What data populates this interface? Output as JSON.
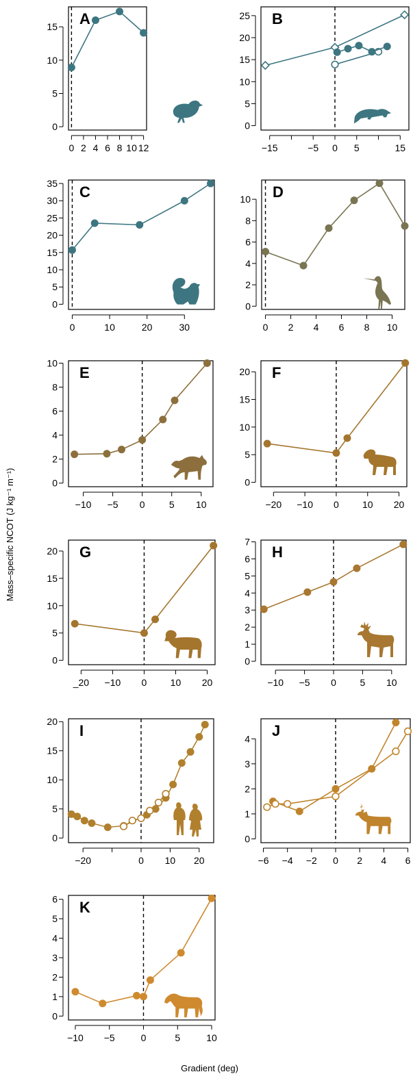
{
  "figure": {
    "ylabel": "Mass–specific NCOT (J kg⁻¹ m⁻¹)",
    "xlabel": "Gradient (deg)"
  },
  "chart_data": [
    {
      "id": "A",
      "type": "line",
      "color": "#3d7681",
      "animal": "bird",
      "xlim": [
        -0.5,
        12.5
      ],
      "ylim": [
        -0.5,
        18
      ],
      "xticks": [
        0,
        2,
        4,
        6,
        8,
        10,
        12
      ],
      "xticklabels": [
        "0",
        "2",
        "4",
        "6",
        "8",
        "10",
        "12"
      ],
      "yticks": [
        0,
        5,
        10,
        15
      ],
      "yticklabels": [
        "0",
        "5",
        "10",
        "15"
      ],
      "series": [
        {
          "marker": "filled",
          "points": [
            [
              0,
              8.9
            ],
            [
              4,
              16
            ],
            [
              8,
              17.3
            ],
            [
              12,
              14.1
            ]
          ]
        }
      ]
    },
    {
      "id": "B",
      "type": "line",
      "color": "#3d7681",
      "animal": "rat",
      "xlim": [
        -17,
        17
      ],
      "ylim": [
        -1,
        27
      ],
      "xticks": [
        -15,
        -10,
        -5,
        0,
        5,
        10,
        15
      ],
      "xticklabels": [
        "−15",
        "",
        "−5",
        "0",
        "5",
        "",
        "15"
      ],
      "yticks": [
        0,
        5,
        10,
        15,
        20,
        25
      ],
      "yticklabels": [
        "0",
        "5",
        "10",
        "15",
        "20",
        "25"
      ],
      "series": [
        {
          "marker": "diamond",
          "points": [
            [
              -16,
              13.7
            ],
            [
              0,
              17.8
            ],
            [
              16,
              25.2
            ]
          ]
        },
        {
          "marker": "open",
          "points": [
            [
              0,
              13.9
            ],
            [
              10,
              16.8
            ]
          ]
        },
        {
          "marker": "filled",
          "points": [
            [
              0.5,
              16.7
            ],
            [
              3,
              17.5
            ],
            [
              5.5,
              18.2
            ],
            [
              8.5,
              16.8
            ],
            [
              12,
              18
            ]
          ]
        }
      ]
    },
    {
      "id": "C",
      "type": "line",
      "color": "#3d7681",
      "animal": "squirrel",
      "xlim": [
        -1,
        38
      ],
      "ylim": [
        -1.5,
        36
      ],
      "xticks": [
        0,
        10,
        20,
        30
      ],
      "xticklabels": [
        "0",
        "10",
        "20",
        "30"
      ],
      "yticks": [
        0,
        5,
        10,
        15,
        20,
        25,
        30,
        35
      ],
      "yticklabels": [
        "0",
        "5",
        "10",
        "15",
        "20",
        "25",
        "30",
        "35"
      ],
      "series": [
        {
          "marker": "filled",
          "points": [
            [
              0,
              15.7
            ],
            [
              6,
              23.5
            ],
            [
              18,
              23
            ],
            [
              30,
              30
            ],
            [
              37,
              35
            ]
          ]
        }
      ]
    },
    {
      "id": "D",
      "type": "line",
      "color": "#797553",
      "animal": "heron",
      "xlim": [
        -0.3,
        11
      ],
      "ylim": [
        -0.3,
        11.8
      ],
      "xticks": [
        0,
        2,
        4,
        6,
        8,
        10
      ],
      "xticklabels": [
        "0",
        "2",
        "4",
        "6",
        "8",
        "10"
      ],
      "yticks": [
        0,
        2,
        4,
        6,
        8,
        10
      ],
      "yticklabels": [
        "0",
        "2",
        "4",
        "6",
        "8",
        "10"
      ],
      "series": [
        {
          "marker": "filled",
          "points": [
            [
              0,
              5.1
            ],
            [
              3,
              3.8
            ],
            [
              5,
              7.3
            ],
            [
              7,
              9.9
            ],
            [
              9,
              11.5
            ],
            [
              11,
              7.5
            ]
          ]
        }
      ]
    },
    {
      "id": "E",
      "type": "line",
      "color": "#8c6f3c",
      "animal": "wolf",
      "xlim": [
        -12.5,
        12
      ],
      "ylim": [
        -0.3,
        10.2
      ],
      "xticks": [
        -10,
        -5,
        0,
        5,
        10
      ],
      "xticklabels": [
        "−10",
        "−5",
        "0",
        "5",
        "10"
      ],
      "yticks": [
        0,
        2,
        4,
        6,
        8,
        10
      ],
      "yticklabels": [
        "0",
        "2",
        "4",
        "6",
        "8",
        "10"
      ],
      "series": [
        {
          "marker": "filled",
          "points": [
            [
              -11.5,
              2.4
            ],
            [
              -6,
              2.45
            ],
            [
              -3.5,
              2.8
            ],
            [
              0,
              3.6
            ],
            [
              3.5,
              5.3
            ],
            [
              5.5,
              6.9
            ],
            [
              11,
              10
            ]
          ]
        }
      ]
    },
    {
      "id": "F",
      "type": "line",
      "color": "#a4752d",
      "animal": "goat",
      "xlim": [
        -24,
        22.5
      ],
      "ylim": [
        -0.8,
        22
      ],
      "xticks": [
        -20,
        -10,
        0,
        10,
        20
      ],
      "xticklabels": [
        "−20",
        "−10",
        "0",
        "10",
        "20"
      ],
      "yticks": [
        0,
        5,
        10,
        15,
        20
      ],
      "yticklabels": [
        "0",
        "5",
        "10",
        "15",
        "20"
      ],
      "series": [
        {
          "marker": "filled",
          "points": [
            [
              -22,
              7
            ],
            [
              0,
              5.3
            ],
            [
              3.5,
              8
            ],
            [
              22,
              21.6
            ]
          ]
        }
      ]
    },
    {
      "id": "G",
      "type": "line",
      "color": "#a4752d",
      "animal": "sheep",
      "xlim": [
        -24,
        22.5
      ],
      "ylim": [
        -0.8,
        22
      ],
      "xticks": [
        -20,
        -10,
        0,
        10,
        20
      ],
      "xticklabels": [
        "_20",
        "−10",
        "0",
        "10",
        "20"
      ],
      "yticks": [
        0,
        5,
        10,
        15,
        20
      ],
      "yticklabels": [
        "0",
        "5",
        "10",
        "15",
        "20"
      ],
      "series": [
        {
          "marker": "filled",
          "points": [
            [
              -22,
              6.7
            ],
            [
              0,
              5
            ],
            [
              3.5,
              7.5
            ],
            [
              22,
              21
            ]
          ]
        }
      ]
    },
    {
      "id": "H",
      "type": "line",
      "color": "#a87731",
      "animal": "deer",
      "xlim": [
        -12.5,
        12.5
      ],
      "ylim": [
        -0.2,
        7.1
      ],
      "xticks": [
        -10,
        -5,
        0,
        5,
        10
      ],
      "xticklabels": [
        "−10",
        "−5",
        "0",
        "5",
        "10"
      ],
      "yticks": [
        0,
        1,
        2,
        3,
        4,
        5,
        6,
        7
      ],
      "yticklabels": [
        "0",
        "1",
        "2",
        "3",
        "4",
        "5",
        "6",
        "7"
      ],
      "series": [
        {
          "marker": "filled",
          "points": [
            [
              -12,
              3.05
            ],
            [
              -4.5,
              4.05
            ],
            [
              0,
              4.65
            ],
            [
              4,
              5.45
            ],
            [
              12,
              6.85
            ]
          ]
        }
      ]
    },
    {
      "id": "I",
      "type": "line",
      "color": "#b1802d",
      "animal": "humans",
      "xlim": [
        -25,
        25
      ],
      "ylim": [
        -0.8,
        20.5
      ],
      "xticks": [
        -20,
        -10,
        0,
        10,
        20
      ],
      "xticklabels": [
        "−20",
        "",
        "0",
        "10",
        "20"
      ],
      "yticks": [
        0,
        5,
        10,
        15,
        20
      ],
      "yticklabels": [
        "0",
        "5",
        "10",
        "15",
        "20"
      ],
      "series": [
        {
          "marker": "filled",
          "points": [
            [
              -24,
              4.1
            ],
            [
              -22,
              3.7
            ],
            [
              -19.5,
              3
            ],
            [
              -17,
              2.55
            ],
            [
              -11.5,
              1.85
            ],
            [
              -6,
              2.1
            ],
            [
              2,
              4
            ],
            [
              5,
              5
            ],
            [
              8.5,
              6.9
            ],
            [
              11,
              9.2
            ],
            [
              14,
              12.9
            ],
            [
              17,
              14.8
            ],
            [
              20,
              17.4
            ],
            [
              22,
              19.5
            ]
          ]
        },
        {
          "marker": "open",
          "points": [
            [
              -6,
              2
            ],
            [
              -3,
              3
            ],
            [
              0,
              3.4
            ],
            [
              3,
              4.7
            ],
            [
              6,
              6.1
            ],
            [
              8.5,
              7.6
            ]
          ]
        }
      ]
    },
    {
      "id": "J",
      "type": "line",
      "color": "#c0842c",
      "animal": "caribou",
      "xlim": [
        -6.2,
        6.2
      ],
      "ylim": [
        -0.15,
        4.8
      ],
      "xticks": [
        -6,
        -4,
        -2,
        0,
        2,
        4,
        6
      ],
      "xticklabels": [
        "−6",
        "−4",
        "−2",
        "0",
        "2",
        "4",
        "6"
      ],
      "yticks": [
        0,
        1,
        2,
        3,
        4
      ],
      "yticklabels": [
        "0",
        "1",
        "2",
        "3",
        "4"
      ],
      "series": [
        {
          "marker": "filled",
          "points": [
            [
              -5.2,
              1.5
            ],
            [
              -3,
              1.1
            ],
            [
              0,
              2
            ],
            [
              3,
              2.8
            ],
            [
              5,
              4.65
            ]
          ]
        },
        {
          "marker": "open",
          "points": [
            [
              -5.7,
              1.27
            ],
            [
              -5,
              1.4
            ],
            [
              -4,
              1.4
            ],
            [
              0,
              1.7
            ],
            [
              5,
              3.5
            ],
            [
              6,
              4.3
            ]
          ]
        }
      ]
    },
    {
      "id": "K",
      "type": "line",
      "color": "#cf8a2f",
      "animal": "horse",
      "xlim": [
        -11,
        10.5
      ],
      "ylim": [
        -0.2,
        6.2
      ],
      "xticks": [
        -10,
        -5,
        0,
        5,
        10
      ],
      "xticklabels": [
        "−10",
        "−5",
        "0",
        "5",
        "10"
      ],
      "yticks": [
        0,
        1,
        2,
        3,
        4,
        5,
        6
      ],
      "yticklabels": [
        "0",
        "1",
        "2",
        "3",
        "4",
        "5",
        "6"
      ],
      "series": [
        {
          "marker": "filled",
          "points": [
            [
              -10,
              1.25
            ],
            [
              -6,
              0.65
            ],
            [
              -1,
              1.05
            ],
            [
              0,
              1
            ],
            [
              1,
              1.85
            ],
            [
              5.5,
              3.25
            ],
            [
              10,
              6.05
            ]
          ]
        }
      ]
    }
  ]
}
